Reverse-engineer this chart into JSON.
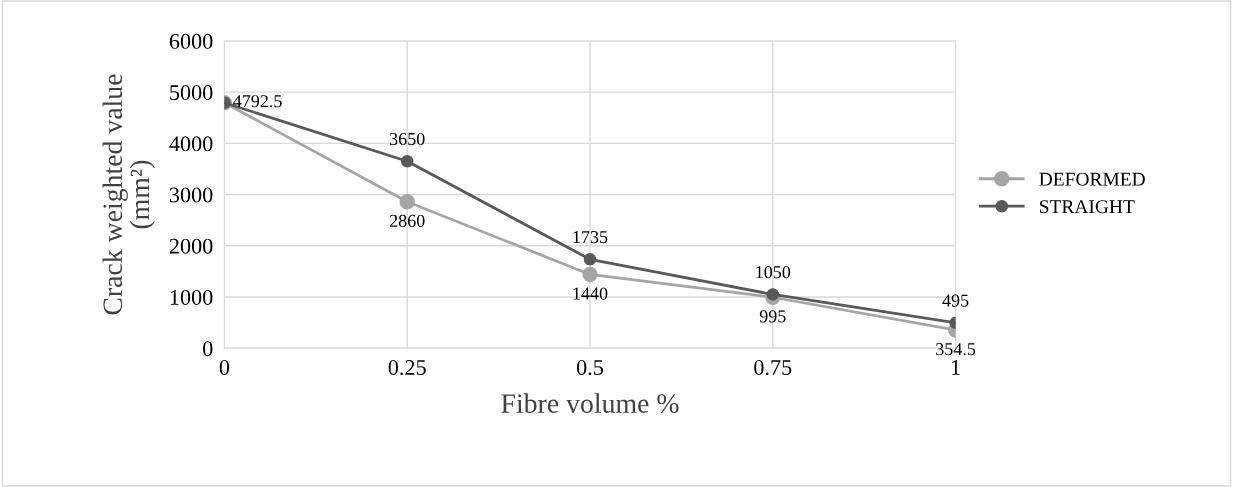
{
  "chart_data": {
    "type": "line",
    "xlabel": "Fibre volume %",
    "ylabel": "Crack weighted value (mm²)",
    "x": [
      0,
      0.25,
      0.5,
      0.75,
      1
    ],
    "series": [
      {
        "name": "DEFORMED",
        "color": "#a5a5a5",
        "values": [
          4792.5,
          2860,
          1440,
          995,
          354.5
        ],
        "value_labels": [
          null,
          "2860",
          "1440",
          "995",
          "354.5"
        ]
      },
      {
        "name": "STRAIGHT",
        "color": "#595959",
        "values": [
          4792.5,
          3650,
          1735,
          1050,
          495
        ],
        "value_labels": [
          "4792.5",
          "3650",
          "1735",
          "1050",
          "495"
        ]
      }
    ],
    "xlim": [
      0,
      1
    ],
    "xticks": [
      0,
      0.25,
      0.5,
      0.75,
      1
    ],
    "ylim": [
      0,
      6000
    ],
    "yticks": [
      0,
      1000,
      2000,
      3000,
      4000,
      5000,
      6000
    ],
    "grid": true,
    "legend": "right",
    "marker": "circle",
    "line_style": "solid"
  }
}
